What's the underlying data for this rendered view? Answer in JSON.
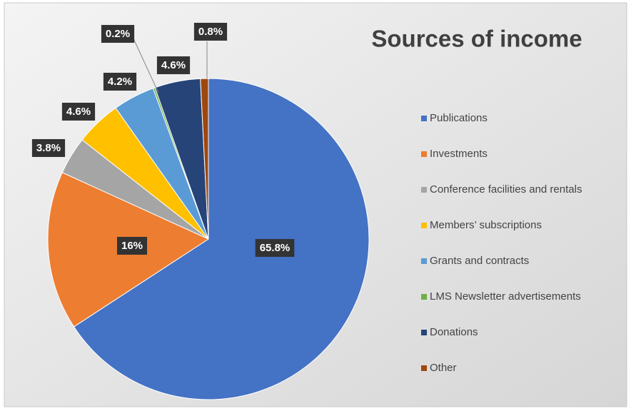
{
  "chart_data": {
    "type": "pie",
    "title": "Sources of income",
    "categories": [
      "Publications",
      "Investments",
      "Conference facilities and rentals",
      "Members’ subscriptions",
      "Grants and contracts",
      "LMS Newsletter advertisements",
      "Donations",
      "Other"
    ],
    "values": [
      65.8,
      16,
      3.8,
      4.6,
      4.2,
      0.2,
      4.6,
      0.8
    ],
    "value_labels": [
      "65.8%",
      "16%",
      "3.8%",
      "4.6%",
      "4.2%",
      "0.2%",
      "4.6%",
      "0.8%"
    ],
    "colors": [
      "#4472c4",
      "#ed7d31",
      "#a5a5a5",
      "#ffc000",
      "#5b9bd5",
      "#70ad47",
      "#264478",
      "#9e480e"
    ],
    "legend": "right"
  }
}
